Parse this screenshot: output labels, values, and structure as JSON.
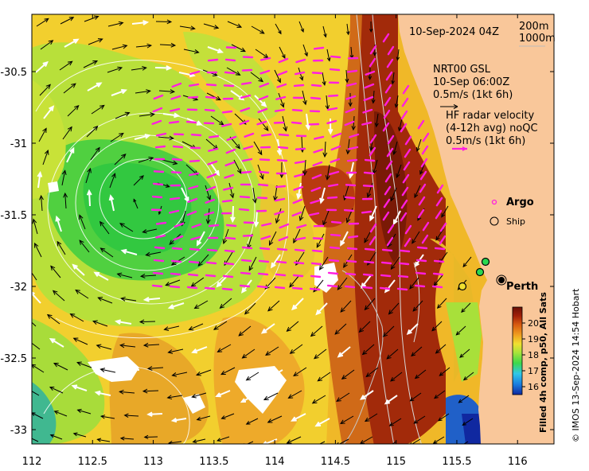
{
  "map": {
    "date_label": "10-Sep-2024 04Z",
    "depth_legend": [
      "200m",
      "1000m"
    ],
    "currents": {
      "line1": "NRT00 GSL",
      "line2": "10-Sep 06:00Z",
      "scale_label": "0.5m/s (1kt 6h)"
    },
    "hf_radar": {
      "line1": "HF radar velocity",
      "line2": "(4-12h avg) noQC",
      "scale_label": "0.5m/s (1kt 6h)"
    },
    "argo_label": "Argo",
    "ship_label": "Ship",
    "city_label": "Perth",
    "colorbar": {
      "title": "Filled 4h comp, p50, All Sats",
      "ticks": [
        "20",
        "19",
        "18",
        "17",
        "16"
      ],
      "range": [
        15.5,
        21
      ]
    },
    "credit": "© IMOS 13-Sep-2024 14:54 Hobart",
    "x_ticks": [
      "112",
      "112.5",
      "113",
      "113.5",
      "114",
      "114.5",
      "115",
      "115.5",
      "116"
    ],
    "y_ticks": [
      "-30.5",
      "-31",
      "-31.5",
      "-32",
      "-32.5",
      "-33"
    ],
    "lon_range": [
      112,
      116.3
    ],
    "lat_range": [
      -33.1,
      -30.1
    ],
    "colors": {
      "land": "#f9c79a",
      "magenta": "#ff1fe0",
      "sst_scale": [
        "#1028a0",
        "#1a7fe0",
        "#30c8e8",
        "#3cd84a",
        "#a8e43a",
        "#f0e030",
        "#f0a020",
        "#d85a10",
        "#a02008",
        "#6a1005"
      ]
    }
  }
}
